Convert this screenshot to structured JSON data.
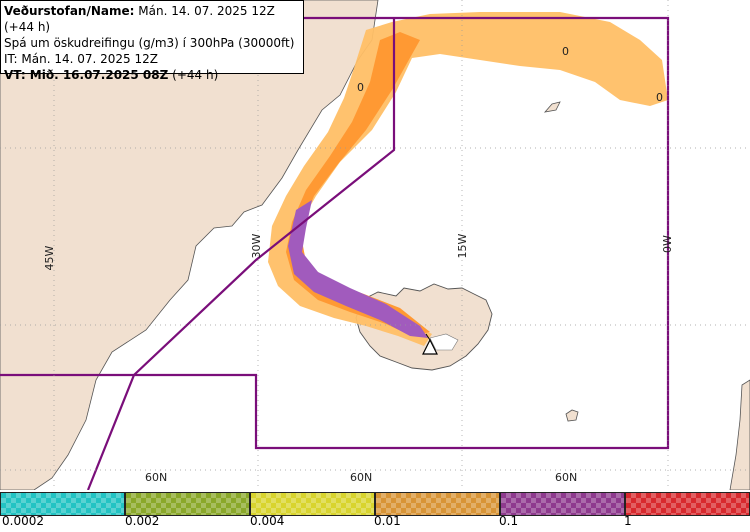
{
  "header": {
    "line1_bold": "Veðurstofan/Name:",
    "line1_rest": " Mán. 14. 07. 2025 12Z (+44 h)",
    "line2": "Spá um öskudreifingu (g/m3) í 300hPa (30000ft)",
    "line3": "IT: Mán. 14. 07. 2025 12Z",
    "line4_bold": "VT: Mið. 16.07.2025 08Z",
    "line4_rest": " (+44 h)"
  },
  "grid_labels": {
    "lon": [
      "45W",
      "30W",
      "15W",
      "0W"
    ],
    "lat": [
      "60N",
      "60N",
      "60N"
    ]
  },
  "plume_markers": [
    "0",
    "0",
    "0"
  ],
  "legend": {
    "ticks": [
      "0.0002",
      "0.002",
      "0.004",
      "0.01",
      "0.1",
      "1"
    ],
    "colors": [
      "#22c3c3",
      "#8aa82a",
      "#d8d42e",
      "#d89436",
      "#8e3a8e",
      "#d8292e"
    ]
  },
  "colors": {
    "land": "#f1e0d0",
    "sea": "#ffffff",
    "plume_low": "#ffbf66",
    "plume_mid": "#ff9933",
    "plume_high": "#a15bbd",
    "boundary": "#7a0e7a"
  }
}
